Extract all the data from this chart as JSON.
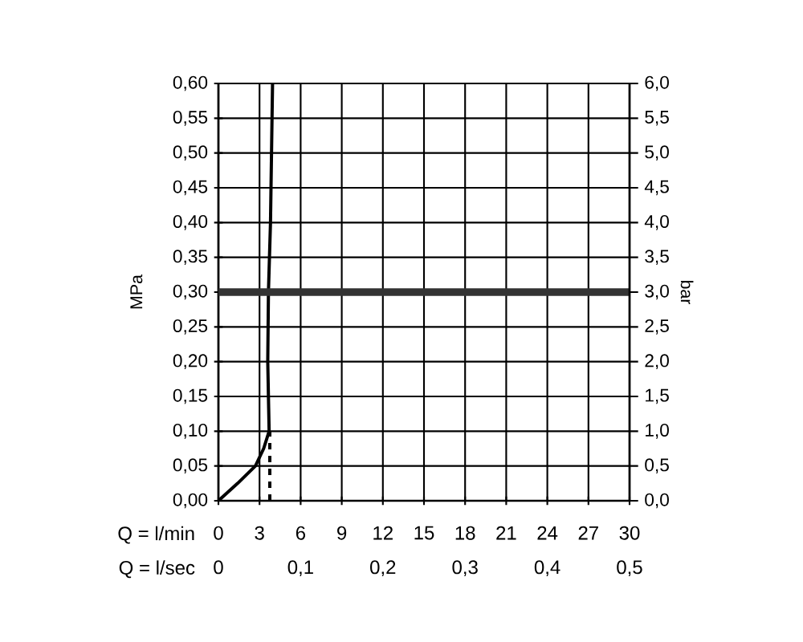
{
  "chart_data": {
    "type": "line",
    "xlabel": "Q = l/min",
    "x2label": "Q = l/sec",
    "ylabel": "MPa",
    "y2label": "bar",
    "xlim": [
      0,
      30
    ],
    "xticks": [
      0,
      3,
      6,
      9,
      12,
      15,
      18,
      21,
      24,
      27,
      30
    ],
    "x2lim": [
      0,
      0.5
    ],
    "x2ticks": [
      {
        "value": 0,
        "label": "0"
      },
      {
        "value": 0.1,
        "label": "0,1"
      },
      {
        "value": 0.2,
        "label": "0,2"
      },
      {
        "value": 0.3,
        "label": "0,3"
      },
      {
        "value": 0.4,
        "label": "0,4"
      },
      {
        "value": 0.5,
        "label": "0,5"
      }
    ],
    "ylim": [
      0,
      0.6
    ],
    "yticks": [
      {
        "value": 0,
        "label": "0,00"
      },
      {
        "value": 0.05,
        "label": "0,05"
      },
      {
        "value": 0.1,
        "label": "0,10"
      },
      {
        "value": 0.15,
        "label": "0,15"
      },
      {
        "value": 0.2,
        "label": "0,20"
      },
      {
        "value": 0.25,
        "label": "0,25"
      },
      {
        "value": 0.3,
        "label": "0,30"
      },
      {
        "value": 0.35,
        "label": "0,35"
      },
      {
        "value": 0.4,
        "label": "0,40"
      },
      {
        "value": 0.45,
        "label": "0,45"
      },
      {
        "value": 0.5,
        "label": "0,50"
      },
      {
        "value": 0.55,
        "label": "0,55"
      },
      {
        "value": 0.6,
        "label": "0,60"
      }
    ],
    "y2lim": [
      0,
      6
    ],
    "y2ticks": [
      {
        "value": 0,
        "label": "0,0"
      },
      {
        "value": 0.5,
        "label": "0,5"
      },
      {
        "value": 1,
        "label": "1,0"
      },
      {
        "value": 1.5,
        "label": "1,5"
      },
      {
        "value": 2,
        "label": "2,0"
      },
      {
        "value": 2.5,
        "label": "2,5"
      },
      {
        "value": 3,
        "label": "3,0"
      },
      {
        "value": 3.5,
        "label": "3,5"
      },
      {
        "value": 4,
        "label": "4,0"
      },
      {
        "value": 4.5,
        "label": "4,5"
      },
      {
        "value": 5,
        "label": "5,0"
      },
      {
        "value": 5.5,
        "label": "5,5"
      },
      {
        "value": 6,
        "label": "6,0"
      }
    ],
    "grid": true,
    "series": [
      {
        "color": "#000000",
        "line_style": "solid",
        "x": [
          0,
          1.4,
          2.7,
          3.3,
          3.7,
          3.6,
          3.65,
          3.8,
          3.95
        ],
        "values": [
          0,
          0.025,
          0.05,
          0.075,
          0.1,
          0.2,
          0.3,
          0.4,
          0.6
        ]
      },
      {
        "color": "#000000",
        "line_style": "dashed",
        "x": [
          3.75,
          3.75
        ],
        "values": [
          0,
          0.1
        ]
      }
    ],
    "ref_lines": [
      {
        "axis": "y",
        "value": 0.3,
        "color": "#333333"
      }
    ]
  }
}
